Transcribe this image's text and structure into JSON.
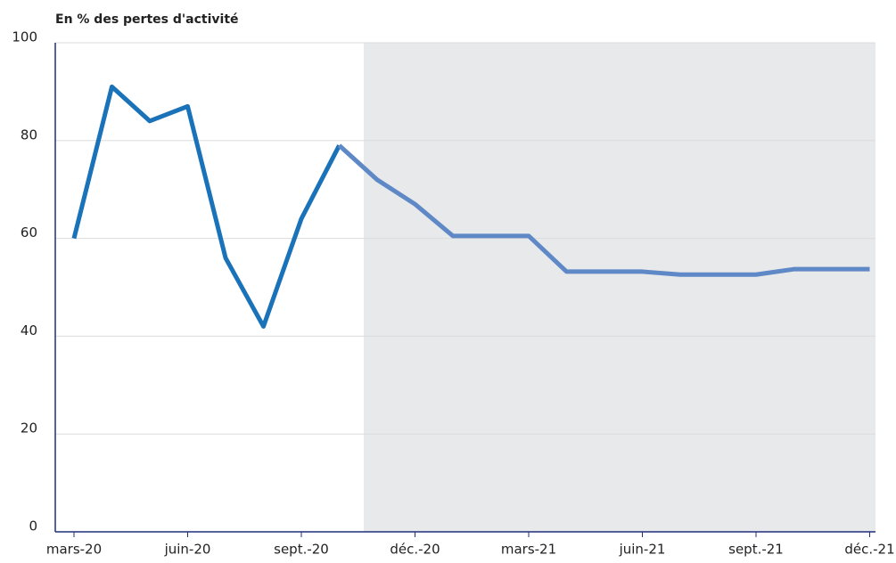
{
  "chart_data": {
    "type": "line",
    "y_label": "En % des pertes d'activité",
    "categories": [
      "mars-20",
      null,
      null,
      "juin-20",
      null,
      null,
      "sept.-20",
      null,
      null,
      "déc.-20",
      null,
      null,
      "mars-21",
      null,
      null,
      "juin-21",
      null,
      null,
      "sept.-21",
      null,
      null,
      "déc.-21"
    ],
    "series": [
      {
        "color": "#1a72b8",
        "values": [
          60,
          91,
          84,
          87,
          56,
          42,
          64,
          79,
          null,
          null,
          null,
          null,
          null,
          null,
          null,
          null,
          null,
          null,
          null,
          null,
          null,
          null
        ]
      },
      {
        "color": "#5f88c6",
        "values": [
          null,
          null,
          null,
          null,
          null,
          null,
          null,
          79,
          72,
          67,
          60.5,
          60.5,
          60.5,
          53.2,
          53.2,
          53.2,
          52.6,
          52.6,
          52.6,
          53.7,
          53.7,
          53.7
        ]
      }
    ],
    "ylim": [
      0,
      100
    ],
    "yticks": [
      0,
      20,
      40,
      60,
      80,
      100
    ],
    "grid": true
  }
}
